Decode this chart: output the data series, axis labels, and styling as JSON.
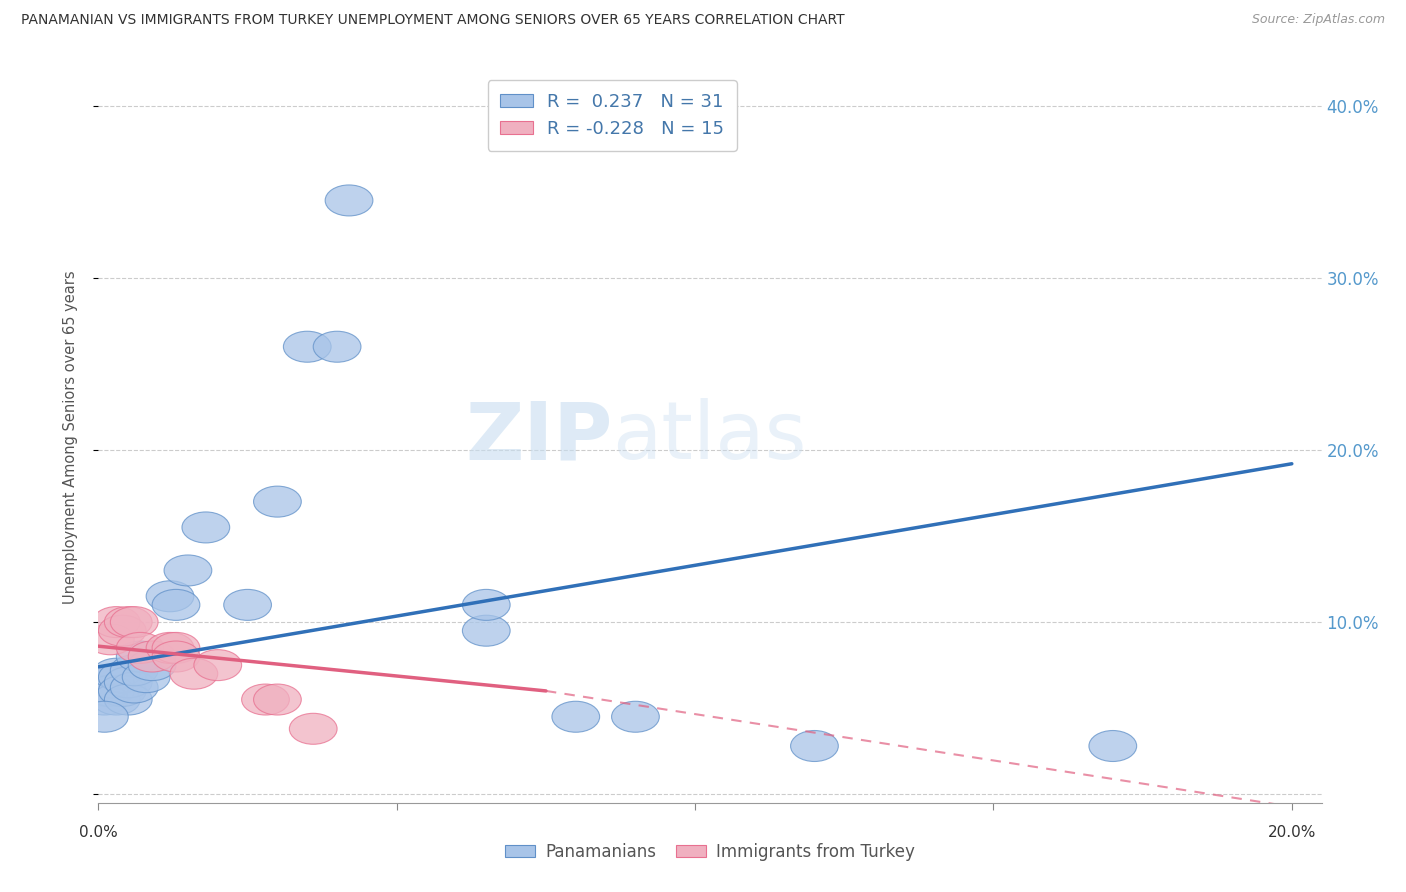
{
  "title": "PANAMANIAN VS IMMIGRANTS FROM TURKEY UNEMPLOYMENT AMONG SENIORS OVER 65 YEARS CORRELATION CHART",
  "source": "Source: ZipAtlas.com",
  "ylabel": "Unemployment Among Seniors over 65 years",
  "watermark_zip": "ZIP",
  "watermark_atlas": "atlas",
  "legend_r1": "R =  0.237   N = 31",
  "legend_r2": "R = -0.228   N = 15",
  "xlim": [
    0.0,
    0.205
  ],
  "ylim": [
    -0.005,
    0.42
  ],
  "yticks": [
    0.0,
    0.1,
    0.2,
    0.3,
    0.4
  ],
  "ytick_labels": [
    "",
    "10.0%",
    "20.0%",
    "30.0%",
    "40.0%"
  ],
  "blue_color": "#a8c4e8",
  "pink_color": "#f0b0c0",
  "blue_edge_color": "#6090c8",
  "pink_edge_color": "#e87090",
  "blue_line_color": "#3070b8",
  "pink_line_color": "#e06080",
  "blue_scatter": [
    [
      0.001,
      0.06
    ],
    [
      0.001,
      0.055
    ],
    [
      0.002,
      0.065
    ],
    [
      0.002,
      0.06
    ],
    [
      0.003,
      0.07
    ],
    [
      0.003,
      0.055
    ],
    [
      0.004,
      0.068
    ],
    [
      0.004,
      0.06
    ],
    [
      0.005,
      0.065
    ],
    [
      0.005,
      0.055
    ],
    [
      0.006,
      0.062
    ],
    [
      0.006,
      0.072
    ],
    [
      0.007,
      0.08
    ],
    [
      0.008,
      0.068
    ],
    [
      0.009,
      0.075
    ],
    [
      0.012,
      0.115
    ],
    [
      0.013,
      0.11
    ],
    [
      0.015,
      0.13
    ],
    [
      0.018,
      0.155
    ],
    [
      0.025,
      0.11
    ],
    [
      0.03,
      0.17
    ],
    [
      0.035,
      0.26
    ],
    [
      0.04,
      0.26
    ],
    [
      0.042,
      0.345
    ],
    [
      0.065,
      0.095
    ],
    [
      0.065,
      0.11
    ],
    [
      0.08,
      0.045
    ],
    [
      0.09,
      0.045
    ],
    [
      0.12,
      0.028
    ],
    [
      0.17,
      0.028
    ],
    [
      0.001,
      0.045
    ]
  ],
  "pink_scatter": [
    [
      0.002,
      0.09
    ],
    [
      0.003,
      0.1
    ],
    [
      0.004,
      0.095
    ],
    [
      0.005,
      0.1
    ],
    [
      0.006,
      0.1
    ],
    [
      0.007,
      0.085
    ],
    [
      0.009,
      0.08
    ],
    [
      0.012,
      0.085
    ],
    [
      0.013,
      0.085
    ],
    [
      0.013,
      0.08
    ],
    [
      0.016,
      0.07
    ],
    [
      0.02,
      0.075
    ],
    [
      0.028,
      0.055
    ],
    [
      0.03,
      0.055
    ],
    [
      0.036,
      0.038
    ]
  ],
  "blue_trend": [
    0.0,
    0.2,
    0.074,
    0.192
  ],
  "pink_trend_solid": [
    0.0,
    0.075,
    0.086,
    0.06
  ],
  "pink_trend_dashed": [
    0.075,
    0.205,
    0.06,
    -0.01
  ]
}
